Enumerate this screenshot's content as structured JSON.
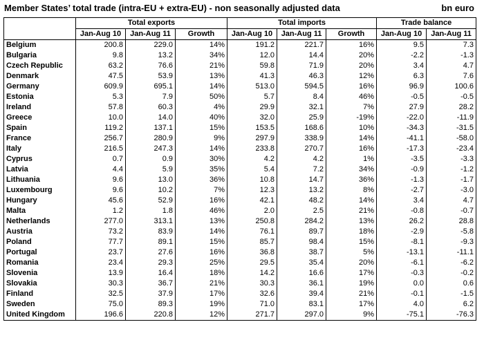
{
  "title": "Member States’ total trade (intra-EU + extra-EU) - non seasonally adjusted data",
  "unit": "bn euro",
  "groups": {
    "exports": "Total exports",
    "imports": "Total imports",
    "balance": "Trade balance"
  },
  "columns": {
    "c1": "Jan-Aug 10",
    "c2": "Jan-Aug 11",
    "c3": "Growth",
    "c4": "Jan-Aug 10",
    "c5": "Jan-Aug 11",
    "c6": "Growth",
    "c7": "Jan-Aug 10",
    "c8": "Jan-Aug 11"
  },
  "rows": [
    [
      "Belgium",
      "200.8",
      "229.0",
      "14%",
      "191.2",
      "221.7",
      "16%",
      "9.5",
      "7.3"
    ],
    [
      "Bulgaria",
      "9.8",
      "13.2",
      "34%",
      "12.0",
      "14.4",
      "20%",
      "-2.2",
      "-1.3"
    ],
    [
      "Czech Republic",
      "63.2",
      "76.6",
      "21%",
      "59.8",
      "71.9",
      "20%",
      "3.4",
      "4.7"
    ],
    [
      "Denmark",
      "47.5",
      "53.9",
      "13%",
      "41.3",
      "46.3",
      "12%",
      "6.3",
      "7.6"
    ],
    [
      "Germany",
      "609.9",
      "695.1",
      "14%",
      "513.0",
      "594.5",
      "16%",
      "96.9",
      "100.6"
    ],
    [
      "Estonia",
      "5.3",
      "7.9",
      "50%",
      "5.7",
      "8.4",
      "46%",
      "-0.5",
      "-0.5"
    ],
    [
      "Ireland",
      "57.8",
      "60.3",
      "4%",
      "29.9",
      "32.1",
      "7%",
      "27.9",
      "28.2"
    ],
    [
      "Greece",
      "10.0",
      "14.0",
      "40%",
      "32.0",
      "25.9",
      "-19%",
      "-22.0",
      "-11.9"
    ],
    [
      "Spain",
      "119.2",
      "137.1",
      "15%",
      "153.5",
      "168.6",
      "10%",
      "-34.3",
      "-31.5"
    ],
    [
      "France",
      "256.7",
      "280.9",
      "9%",
      "297.9",
      "338.9",
      "14%",
      "-41.1",
      "-58.0"
    ],
    [
      "Italy",
      "216.5",
      "247.3",
      "14%",
      "233.8",
      "270.7",
      "16%",
      "-17.3",
      "-23.4"
    ],
    [
      "Cyprus",
      "0.7",
      "0.9",
      "30%",
      "4.2",
      "4.2",
      "1%",
      "-3.5",
      "-3.3"
    ],
    [
      "Latvia",
      "4.4",
      "5.9",
      "35%",
      "5.4",
      "7.2",
      "34%",
      "-0.9",
      "-1.2"
    ],
    [
      "Lithuania",
      "9.6",
      "13.0",
      "36%",
      "10.8",
      "14.7",
      "36%",
      "-1.3",
      "-1.7"
    ],
    [
      "Luxembourg",
      "9.6",
      "10.2",
      "7%",
      "12.3",
      "13.2",
      "8%",
      "-2.7",
      "-3.0"
    ],
    [
      "Hungary",
      "45.6",
      "52.9",
      "16%",
      "42.1",
      "48.2",
      "14%",
      "3.4",
      "4.7"
    ],
    [
      "Malta",
      "1.2",
      "1.8",
      "46%",
      "2.0",
      "2.5",
      "21%",
      "-0.8",
      "-0.7"
    ],
    [
      "Netherlands",
      "277.0",
      "313.1",
      "13%",
      "250.8",
      "284.2",
      "13%",
      "26.2",
      "28.8"
    ],
    [
      "Austria",
      "73.2",
      "83.9",
      "14%",
      "76.1",
      "89.7",
      "18%",
      "-2.9",
      "-5.8"
    ],
    [
      "Poland",
      "77.7",
      "89.1",
      "15%",
      "85.7",
      "98.4",
      "15%",
      "-8.1",
      "-9.3"
    ],
    [
      "Portugal",
      "23.7",
      "27.6",
      "16%",
      "36.8",
      "38.7",
      "5%",
      "-13.1",
      "-11.1"
    ],
    [
      "Romania",
      "23.4",
      "29.3",
      "25%",
      "29.5",
      "35.4",
      "20%",
      "-6.1",
      "-6.2"
    ],
    [
      "Slovenia",
      "13.9",
      "16.4",
      "18%",
      "14.2",
      "16.6",
      "17%",
      "-0.3",
      "-0.2"
    ],
    [
      "Slovakia",
      "30.3",
      "36.7",
      "21%",
      "30.3",
      "36.1",
      "19%",
      "0.0",
      "0.6"
    ],
    [
      "Finland",
      "32.5",
      "37.9",
      "17%",
      "32.6",
      "39.4",
      "21%",
      "-0.1",
      "-1.5"
    ],
    [
      "Sweden",
      "75.0",
      "89.3",
      "19%",
      "71.0",
      "83.1",
      "17%",
      "4.0",
      "6.2"
    ],
    [
      "United Kingdom",
      "196.6",
      "220.8",
      "12%",
      "271.7",
      "297.0",
      "9%",
      "-75.1",
      "-76.3"
    ]
  ]
}
